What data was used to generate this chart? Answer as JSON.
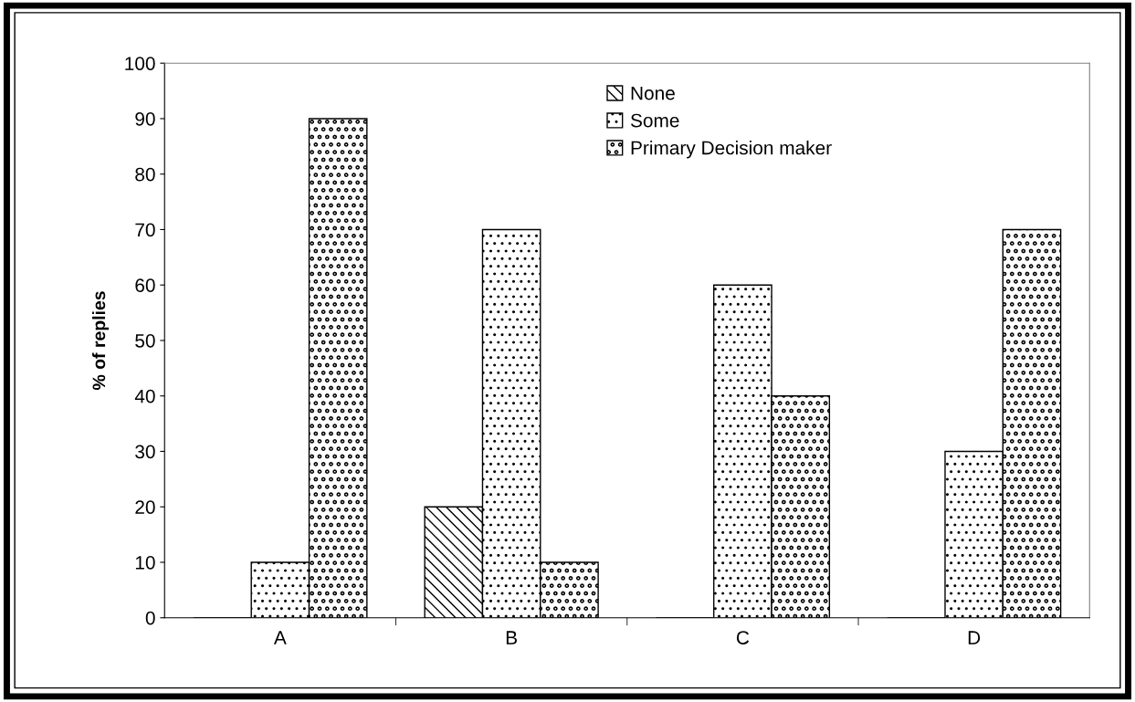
{
  "chart_data": {
    "type": "bar",
    "ylabel": "% of replies",
    "categories": [
      "A",
      "B",
      "C",
      "D"
    ],
    "series": [
      {
        "name": "None",
        "color": "#000000",
        "values": [
          0,
          20,
          0,
          0
        ]
      },
      {
        "name": "Some",
        "color": "#000000",
        "values": [
          10,
          70,
          60,
          30
        ]
      },
      {
        "name": "Primary Decision maker",
        "color": "#000000",
        "values": [
          90,
          10,
          40,
          70
        ]
      }
    ],
    "ylim": [
      0,
      100
    ],
    "yticks": [
      0,
      10,
      20,
      30,
      40,
      50,
      60,
      70,
      80,
      90,
      100
    ],
    "grid": false,
    "legend": "top"
  }
}
